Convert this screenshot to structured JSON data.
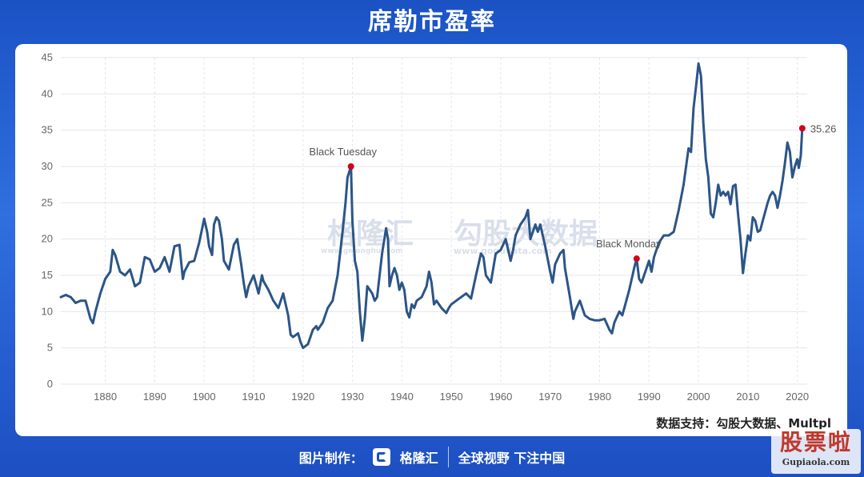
{
  "header": {
    "title": "席勒市盈率"
  },
  "watermark": {
    "brand": "格隆汇",
    "brand_url": "www.gelonghui.com",
    "partner": "勾股大数据",
    "partner_url": "www.gogudata.com"
  },
  "source_note": "数据支持：勾股大数据、Multpl",
  "footer": {
    "made_by": "图片制作：",
    "brand": "格隆汇",
    "slogan": "全球视野 下注中国"
  },
  "corner_badge": {
    "text": "股票啦",
    "site": "Gupiaola.com"
  },
  "colors": {
    "line": "#2b5588",
    "marker": "#d0021b",
    "background_top": "#1a52c4"
  },
  "chart_data": {
    "type": "line",
    "title": "席勒市盈率",
    "xlabel": "",
    "ylabel": "",
    "xlim": [
      1871,
      2022
    ],
    "ylim": [
      0,
      45
    ],
    "yticks": [
      0,
      5,
      10,
      15,
      20,
      25,
      30,
      35,
      40,
      45
    ],
    "xticks": [
      1880,
      1890,
      1900,
      1910,
      1920,
      1930,
      1940,
      1950,
      1960,
      1970,
      1980,
      1990,
      2000,
      2010,
      2020
    ],
    "grid": true,
    "series": [
      {
        "values": [
          [
            1871,
            12.0
          ],
          [
            1872,
            12.3
          ],
          [
            1873,
            12.0
          ],
          [
            1874,
            11.2
          ],
          [
            1875,
            11.5
          ],
          [
            1876,
            11.5
          ],
          [
            1877,
            9.0
          ],
          [
            1877.5,
            8.4
          ],
          [
            1878,
            10.0
          ],
          [
            1879,
            12.5
          ],
          [
            1880,
            14.5
          ],
          [
            1881,
            15.5
          ],
          [
            1881.5,
            18.5
          ],
          [
            1882,
            17.8
          ],
          [
            1883,
            15.5
          ],
          [
            1884,
            15.0
          ],
          [
            1885,
            15.8
          ],
          [
            1886,
            13.5
          ],
          [
            1887,
            14.0
          ],
          [
            1888,
            17.5
          ],
          [
            1889,
            17.2
          ],
          [
            1890,
            15.5
          ],
          [
            1891,
            16.0
          ],
          [
            1892,
            17.5
          ],
          [
            1893,
            15.5
          ],
          [
            1894,
            19.0
          ],
          [
            1895,
            19.2
          ],
          [
            1895.7,
            14.5
          ],
          [
            1896,
            15.5
          ],
          [
            1897,
            16.8
          ],
          [
            1898,
            17.0
          ],
          [
            1899,
            19.5
          ],
          [
            1900,
            22.8
          ],
          [
            1900.6,
            21.0
          ],
          [
            1901,
            19.0
          ],
          [
            1901.6,
            17.8
          ],
          [
            1902,
            22.0
          ],
          [
            1902.5,
            23.0
          ],
          [
            1903,
            22.5
          ],
          [
            1903.6,
            20.0
          ],
          [
            1904,
            17.0
          ],
          [
            1905,
            15.8
          ],
          [
            1906,
            19.2
          ],
          [
            1906.7,
            20.0
          ],
          [
            1907.5,
            16.5
          ],
          [
            1908,
            14.0
          ],
          [
            1908.5,
            12.0
          ],
          [
            1909,
            13.5
          ],
          [
            1910,
            15.0
          ],
          [
            1911,
            12.5
          ],
          [
            1911.7,
            15.0
          ],
          [
            1912,
            14.2
          ],
          [
            1913,
            13.0
          ],
          [
            1914,
            11.5
          ],
          [
            1915,
            10.5
          ],
          [
            1916,
            12.5
          ],
          [
            1917,
            9.5
          ],
          [
            1917.5,
            6.8
          ],
          [
            1918,
            6.5
          ],
          [
            1919,
            7.0
          ],
          [
            1919.5,
            5.8
          ],
          [
            1920,
            5.0
          ],
          [
            1921,
            5.5
          ],
          [
            1922,
            7.5
          ],
          [
            1922.7,
            8.0
          ],
          [
            1923,
            7.5
          ],
          [
            1924,
            8.5
          ],
          [
            1925,
            10.5
          ],
          [
            1926,
            11.5
          ],
          [
            1927,
            15.0
          ],
          [
            1928,
            21.0
          ],
          [
            1928.6,
            25.0
          ],
          [
            1929,
            28.5
          ],
          [
            1929.7,
            30.0
          ],
          [
            1930,
            22.5
          ],
          [
            1930.5,
            17.0
          ],
          [
            1931,
            15.5
          ],
          [
            1931.5,
            10.0
          ],
          [
            1932,
            6.0
          ],
          [
            1932.5,
            9.0
          ],
          [
            1933,
            13.5
          ],
          [
            1934,
            12.5
          ],
          [
            1934.5,
            11.5
          ],
          [
            1935,
            12.0
          ],
          [
            1936,
            18.0
          ],
          [
            1936.8,
            21.5
          ],
          [
            1937.2,
            20.0
          ],
          [
            1937.5,
            13.5
          ],
          [
            1938,
            15.0
          ],
          [
            1938.5,
            16.0
          ],
          [
            1939,
            15.0
          ],
          [
            1939.5,
            13.0
          ],
          [
            1940,
            14.0
          ],
          [
            1940.5,
            13.0
          ],
          [
            1941,
            10.0
          ],
          [
            1941.5,
            9.2
          ],
          [
            1942,
            11.0
          ],
          [
            1942.5,
            10.5
          ],
          [
            1943,
            11.5
          ],
          [
            1944,
            12.0
          ],
          [
            1945,
            13.5
          ],
          [
            1945.5,
            15.5
          ],
          [
            1946,
            14.0
          ],
          [
            1946.5,
            11.0
          ],
          [
            1947,
            11.5
          ],
          [
            1948,
            10.5
          ],
          [
            1949,
            9.8
          ],
          [
            1949.5,
            10.5
          ],
          [
            1950,
            11.0
          ],
          [
            1951,
            11.5
          ],
          [
            1952,
            12.0
          ],
          [
            1953,
            12.5
          ],
          [
            1954,
            11.8
          ],
          [
            1955,
            15.0
          ],
          [
            1956,
            18.0
          ],
          [
            1956.5,
            17.5
          ],
          [
            1957,
            15.0
          ],
          [
            1958,
            14.0
          ],
          [
            1959,
            18.0
          ],
          [
            1960,
            18.5
          ],
          [
            1961,
            20.0
          ],
          [
            1962,
            17.0
          ],
          [
            1962.5,
            18.5
          ],
          [
            1963,
            20.5
          ],
          [
            1964,
            22.0
          ],
          [
            1965,
            23.0
          ],
          [
            1965.5,
            24.0
          ],
          [
            1966,
            20.0
          ],
          [
            1966.5,
            21.0
          ],
          [
            1967,
            22.0
          ],
          [
            1967.5,
            21.0
          ],
          [
            1968,
            22.0
          ],
          [
            1969,
            19.0
          ],
          [
            1970,
            15.5
          ],
          [
            1970.5,
            14.0
          ],
          [
            1971,
            16.5
          ],
          [
            1972,
            18.0
          ],
          [
            1972.7,
            18.5
          ],
          [
            1973,
            16.0
          ],
          [
            1974,
            12.0
          ],
          [
            1974.7,
            9.0
          ],
          [
            1975,
            10.0
          ],
          [
            1976,
            11.5
          ],
          [
            1977,
            9.5
          ],
          [
            1978,
            9.0
          ],
          [
            1979,
            8.8
          ],
          [
            1980,
            8.8
          ],
          [
            1981,
            9.0
          ],
          [
            1982,
            7.5
          ],
          [
            1982.5,
            7.0
          ],
          [
            1983,
            8.5
          ],
          [
            1984,
            10.0
          ],
          [
            1984.6,
            9.5
          ],
          [
            1985,
            10.5
          ],
          [
            1986,
            13.0
          ],
          [
            1987,
            16.0
          ],
          [
            1987.5,
            17.3
          ],
          [
            1988,
            14.5
          ],
          [
            1988.5,
            14.0
          ],
          [
            1989,
            15.0
          ],
          [
            1990,
            17.0
          ],
          [
            1990.5,
            15.5
          ],
          [
            1991,
            17.5
          ],
          [
            1992,
            19.5
          ],
          [
            1993,
            20.5
          ],
          [
            1994,
            20.5
          ],
          [
            1995,
            21.0
          ],
          [
            1996,
            24.0
          ],
          [
            1997,
            27.5
          ],
          [
            1997.5,
            30.0
          ],
          [
            1998,
            32.5
          ],
          [
            1998.5,
            32.0
          ],
          [
            1999,
            38.0
          ],
          [
            1999.5,
            41.0
          ],
          [
            2000,
            44.2
          ],
          [
            2000.5,
            42.5
          ],
          [
            2001,
            36.0
          ],
          [
            2001.5,
            31.0
          ],
          [
            2002,
            28.5
          ],
          [
            2002.5,
            23.5
          ],
          [
            2003,
            23.0
          ],
          [
            2003.5,
            25.0
          ],
          [
            2004,
            27.5
          ],
          [
            2004.5,
            26.0
          ],
          [
            2005,
            26.5
          ],
          [
            2005.5,
            26.0
          ],
          [
            2006,
            26.5
          ],
          [
            2006.5,
            24.8
          ],
          [
            2007,
            27.3
          ],
          [
            2007.5,
            27.5
          ],
          [
            2008,
            23.5
          ],
          [
            2008.5,
            20.0
          ],
          [
            2009,
            15.3
          ],
          [
            2009.5,
            18.0
          ],
          [
            2010,
            20.5
          ],
          [
            2010.5,
            19.8
          ],
          [
            2011,
            23.0
          ],
          [
            2011.5,
            22.5
          ],
          [
            2012,
            21.0
          ],
          [
            2012.5,
            21.2
          ],
          [
            2013,
            22.5
          ],
          [
            2014,
            25.0
          ],
          [
            2014.5,
            26.0
          ],
          [
            2015,
            26.5
          ],
          [
            2015.5,
            26.0
          ],
          [
            2016,
            24.3
          ],
          [
            2016.5,
            26.0
          ],
          [
            2017,
            28.0
          ],
          [
            2017.5,
            30.5
          ],
          [
            2018,
            33.3
          ],
          [
            2018.5,
            32.0
          ],
          [
            2019,
            28.5
          ],
          [
            2019.5,
            30.0
          ],
          [
            2020,
            31.0
          ],
          [
            2020.3,
            29.8
          ],
          [
            2020.7,
            31.5
          ],
          [
            2021,
            35.26
          ]
        ]
      }
    ],
    "annotations": [
      {
        "x": 1929.7,
        "y": 30.0,
        "label": "Black Tuesday"
      },
      {
        "x": 1987.5,
        "y": 17.3,
        "label": "Black Monday"
      },
      {
        "x": 2021,
        "y": 35.26,
        "label": "35.26"
      }
    ]
  }
}
